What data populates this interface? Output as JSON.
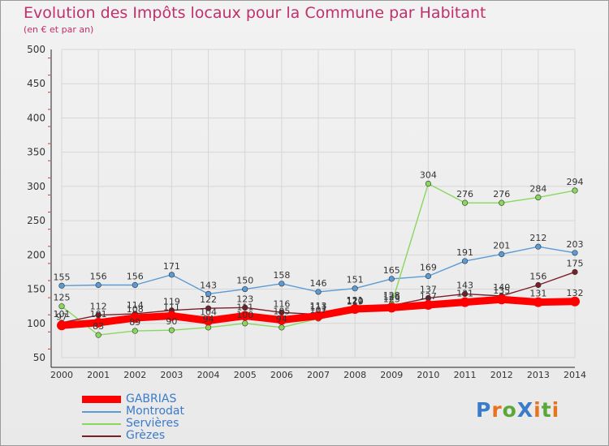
{
  "title": "Evolution des Impôts locaux pour la Commune par Habitant",
  "subtitle": "(en € et par an)",
  "logo": "ProXiti",
  "chart_data": {
    "type": "line",
    "x": [
      2000,
      2001,
      2002,
      2003,
      2004,
      2005,
      2006,
      2007,
      2008,
      2009,
      2010,
      2011,
      2012,
      2013,
      2014
    ],
    "ylim": [
      50,
      500
    ],
    "yticks": [
      50,
      100,
      150,
      200,
      250,
      300,
      350,
      400,
      450,
      500
    ],
    "series": [
      {
        "name": "GABRIAS",
        "color": "#ff0000",
        "values": [
          97,
          101,
          108,
          111,
          104,
          111,
          105,
          111,
          121,
          123,
          127,
          131,
          135,
          131,
          132
        ]
      },
      {
        "name": "Montrodat",
        "color": "#5b9bd5",
        "values": [
          155,
          156,
          156,
          171,
          143,
          150,
          158,
          146,
          151,
          165,
          169,
          191,
          201,
          212,
          203
        ]
      },
      {
        "name": "Servières",
        "color": "#88d85e",
        "values": [
          125,
          83,
          89,
          90,
          94,
          100,
          94,
          107,
          120,
          128,
          304,
          276,
          276,
          284,
          294
        ]
      },
      {
        "name": "Grèzes",
        "color": "#7a1f2a",
        "values": [
          101,
          112,
          114,
          119,
          122,
          123,
          116,
          113,
          119,
          126,
          137,
          143,
          140,
          156,
          175
        ]
      }
    ]
  }
}
